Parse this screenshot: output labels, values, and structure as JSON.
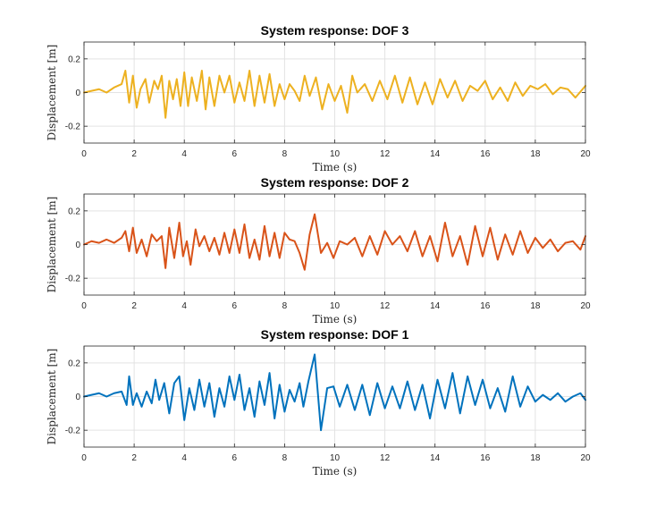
{
  "chart_data": [
    {
      "type": "line",
      "title": "System response: DOF 3",
      "xlabel": "Time (s)",
      "ylabel": "Displacement [m]",
      "xlim": [
        0,
        20
      ],
      "ylim": [
        -0.3,
        0.3
      ],
      "xticks": [
        "0",
        "2",
        "4",
        "6",
        "8",
        "10",
        "12",
        "14",
        "16",
        "18",
        "20"
      ],
      "yticks": [
        "0.2",
        "0",
        "-0.2"
      ],
      "grid": true,
      "color": "#EDB120",
      "series": [
        {
          "x": [
            0.0,
            0.3,
            0.6,
            0.9,
            1.2,
            1.5,
            1.65,
            1.8,
            1.95,
            2.1,
            2.25,
            2.45,
            2.6,
            2.8,
            2.95,
            3.1,
            3.25,
            3.4,
            3.55,
            3.7,
            3.85,
            4.0,
            4.15,
            4.3,
            4.5,
            4.7,
            4.85,
            5.0,
            5.2,
            5.4,
            5.6,
            5.8,
            6.0,
            6.2,
            6.4,
            6.6,
            6.8,
            7.0,
            7.2,
            7.4,
            7.6,
            7.8,
            8.0,
            8.2,
            8.4,
            8.6,
            8.8,
            9.0,
            9.25,
            9.5,
            9.75,
            10.0,
            10.25,
            10.5,
            10.7,
            10.9,
            11.2,
            11.5,
            11.8,
            12.1,
            12.4,
            12.7,
            13.0,
            13.3,
            13.6,
            13.9,
            14.2,
            14.5,
            14.8,
            15.1,
            15.4,
            15.7,
            16.0,
            16.3,
            16.6,
            16.9,
            17.2,
            17.5,
            17.8,
            18.1,
            18.4,
            18.7,
            19.0,
            19.3,
            19.6,
            20.0
          ],
          "y": [
            0.0,
            0.01,
            0.02,
            0.0,
            0.03,
            0.05,
            0.13,
            -0.06,
            0.1,
            -0.09,
            0.02,
            0.08,
            -0.06,
            0.07,
            0.02,
            0.1,
            -0.15,
            0.07,
            -0.04,
            0.08,
            -0.08,
            0.12,
            -0.08,
            0.09,
            -0.05,
            0.13,
            -0.1,
            0.09,
            -0.08,
            0.1,
            0.0,
            0.1,
            -0.06,
            0.06,
            -0.05,
            0.13,
            -0.08,
            0.1,
            -0.06,
            0.11,
            -0.08,
            0.05,
            -0.04,
            0.05,
            0.01,
            -0.05,
            0.1,
            -0.02,
            0.09,
            -0.1,
            0.05,
            -0.05,
            0.04,
            -0.12,
            0.1,
            0.0,
            0.05,
            -0.05,
            0.07,
            -0.04,
            0.1,
            -0.06,
            0.09,
            -0.07,
            0.06,
            -0.07,
            0.08,
            -0.03,
            0.07,
            -0.05,
            0.04,
            0.01,
            0.07,
            -0.04,
            0.03,
            -0.05,
            0.06,
            -0.02,
            0.04,
            0.02,
            0.05,
            -0.01,
            0.03,
            0.02,
            -0.03,
            0.04
          ]
        }
      ]
    },
    {
      "type": "line",
      "title": "System response: DOF 2",
      "xlabel": "Time (s)",
      "ylabel": "Displacement [m]",
      "xlim": [
        0,
        20
      ],
      "ylim": [
        -0.3,
        0.3
      ],
      "xticks": [
        "0",
        "2",
        "4",
        "6",
        "8",
        "10",
        "12",
        "14",
        "16",
        "18",
        "20"
      ],
      "yticks": [
        "0.2",
        "0",
        "-0.2"
      ],
      "grid": true,
      "color": "#D95319",
      "series": [
        {
          "x": [
            0.0,
            0.3,
            0.6,
            0.9,
            1.2,
            1.5,
            1.65,
            1.8,
            1.95,
            2.1,
            2.3,
            2.5,
            2.7,
            2.9,
            3.1,
            3.25,
            3.4,
            3.6,
            3.8,
            3.95,
            4.1,
            4.25,
            4.45,
            4.6,
            4.8,
            5.0,
            5.2,
            5.4,
            5.6,
            5.8,
            6.0,
            6.2,
            6.4,
            6.6,
            6.8,
            7.0,
            7.2,
            7.4,
            7.6,
            7.8,
            8.0,
            8.2,
            8.4,
            8.6,
            8.8,
            9.0,
            9.2,
            9.45,
            9.7,
            9.95,
            10.2,
            10.5,
            10.8,
            11.1,
            11.4,
            11.7,
            12.0,
            12.3,
            12.6,
            12.9,
            13.2,
            13.5,
            13.8,
            14.1,
            14.4,
            14.7,
            15.0,
            15.3,
            15.6,
            15.9,
            16.2,
            16.5,
            16.8,
            17.1,
            17.4,
            17.7,
            18.0,
            18.3,
            18.6,
            18.9,
            19.2,
            19.5,
            19.8,
            20.0
          ],
          "y": [
            0.0,
            0.02,
            0.01,
            0.03,
            0.01,
            0.04,
            0.08,
            -0.04,
            0.1,
            -0.05,
            0.03,
            -0.07,
            0.06,
            0.02,
            0.05,
            -0.14,
            0.1,
            -0.08,
            0.13,
            -0.07,
            0.02,
            -0.12,
            0.09,
            -0.01,
            0.05,
            -0.04,
            0.04,
            -0.06,
            0.07,
            -0.05,
            0.09,
            -0.05,
            0.12,
            -0.08,
            0.03,
            -0.09,
            0.11,
            -0.07,
            0.07,
            -0.08,
            0.07,
            0.03,
            0.02,
            -0.05,
            -0.15,
            0.06,
            0.18,
            -0.05,
            0.01,
            -0.08,
            0.02,
            0.0,
            0.04,
            -0.07,
            0.05,
            -0.06,
            0.08,
            0.0,
            0.05,
            -0.04,
            0.08,
            -0.07,
            0.05,
            -0.1,
            0.13,
            -0.07,
            0.05,
            -0.12,
            0.11,
            -0.07,
            0.1,
            -0.09,
            0.06,
            -0.06,
            0.08,
            -0.05,
            0.04,
            -0.02,
            0.03,
            -0.04,
            0.01,
            0.02,
            -0.03,
            0.05
          ]
        }
      ]
    },
    {
      "type": "line",
      "title": "System response: DOF 1",
      "xlabel": "Time (s)",
      "ylabel": "Displacement [m]",
      "xlim": [
        0,
        20
      ],
      "ylim": [
        -0.3,
        0.3
      ],
      "xticks": [
        "0",
        "2",
        "4",
        "6",
        "8",
        "10",
        "12",
        "14",
        "16",
        "18",
        "20"
      ],
      "yticks": [
        "0.2",
        "0",
        "-0.2"
      ],
      "grid": true,
      "color": "#0072BD",
      "series": [
        {
          "x": [
            0.0,
            0.3,
            0.6,
            0.9,
            1.2,
            1.5,
            1.7,
            1.8,
            1.95,
            2.1,
            2.3,
            2.5,
            2.7,
            2.85,
            3.0,
            3.2,
            3.4,
            3.6,
            3.8,
            4.0,
            4.2,
            4.4,
            4.6,
            4.8,
            5.0,
            5.2,
            5.4,
            5.6,
            5.8,
            6.0,
            6.2,
            6.4,
            6.6,
            6.8,
            7.0,
            7.2,
            7.4,
            7.6,
            7.8,
            8.0,
            8.2,
            8.4,
            8.6,
            8.75,
            8.95,
            9.2,
            9.45,
            9.7,
            9.95,
            10.2,
            10.5,
            10.8,
            11.1,
            11.4,
            11.7,
            12.0,
            12.3,
            12.6,
            12.9,
            13.2,
            13.5,
            13.8,
            14.1,
            14.4,
            14.7,
            15.0,
            15.3,
            15.6,
            15.9,
            16.2,
            16.5,
            16.8,
            17.1,
            17.4,
            17.7,
            18.0,
            18.3,
            18.6,
            18.9,
            19.2,
            19.5,
            19.8,
            20.0
          ],
          "y": [
            0.0,
            0.01,
            0.02,
            0.0,
            0.02,
            0.03,
            -0.05,
            0.12,
            -0.05,
            0.02,
            -0.06,
            0.03,
            -0.04,
            0.1,
            -0.02,
            0.08,
            -0.1,
            0.08,
            0.12,
            -0.14,
            0.05,
            -0.08,
            0.1,
            -0.06,
            0.08,
            -0.12,
            0.05,
            -0.06,
            0.12,
            -0.02,
            0.13,
            -0.08,
            0.05,
            -0.12,
            0.09,
            -0.05,
            0.14,
            -0.13,
            0.07,
            -0.09,
            0.04,
            -0.03,
            0.08,
            -0.06,
            0.09,
            0.25,
            -0.2,
            0.05,
            0.06,
            -0.06,
            0.07,
            -0.08,
            0.07,
            -0.11,
            0.08,
            -0.07,
            0.06,
            -0.07,
            0.09,
            -0.08,
            0.07,
            -0.13,
            0.1,
            -0.07,
            0.14,
            -0.1,
            0.12,
            -0.05,
            0.1,
            -0.07,
            0.05,
            -0.09,
            0.12,
            -0.06,
            0.06,
            -0.03,
            0.01,
            -0.02,
            0.02,
            -0.03,
            0.0,
            0.02,
            -0.02
          ]
        }
      ]
    }
  ]
}
